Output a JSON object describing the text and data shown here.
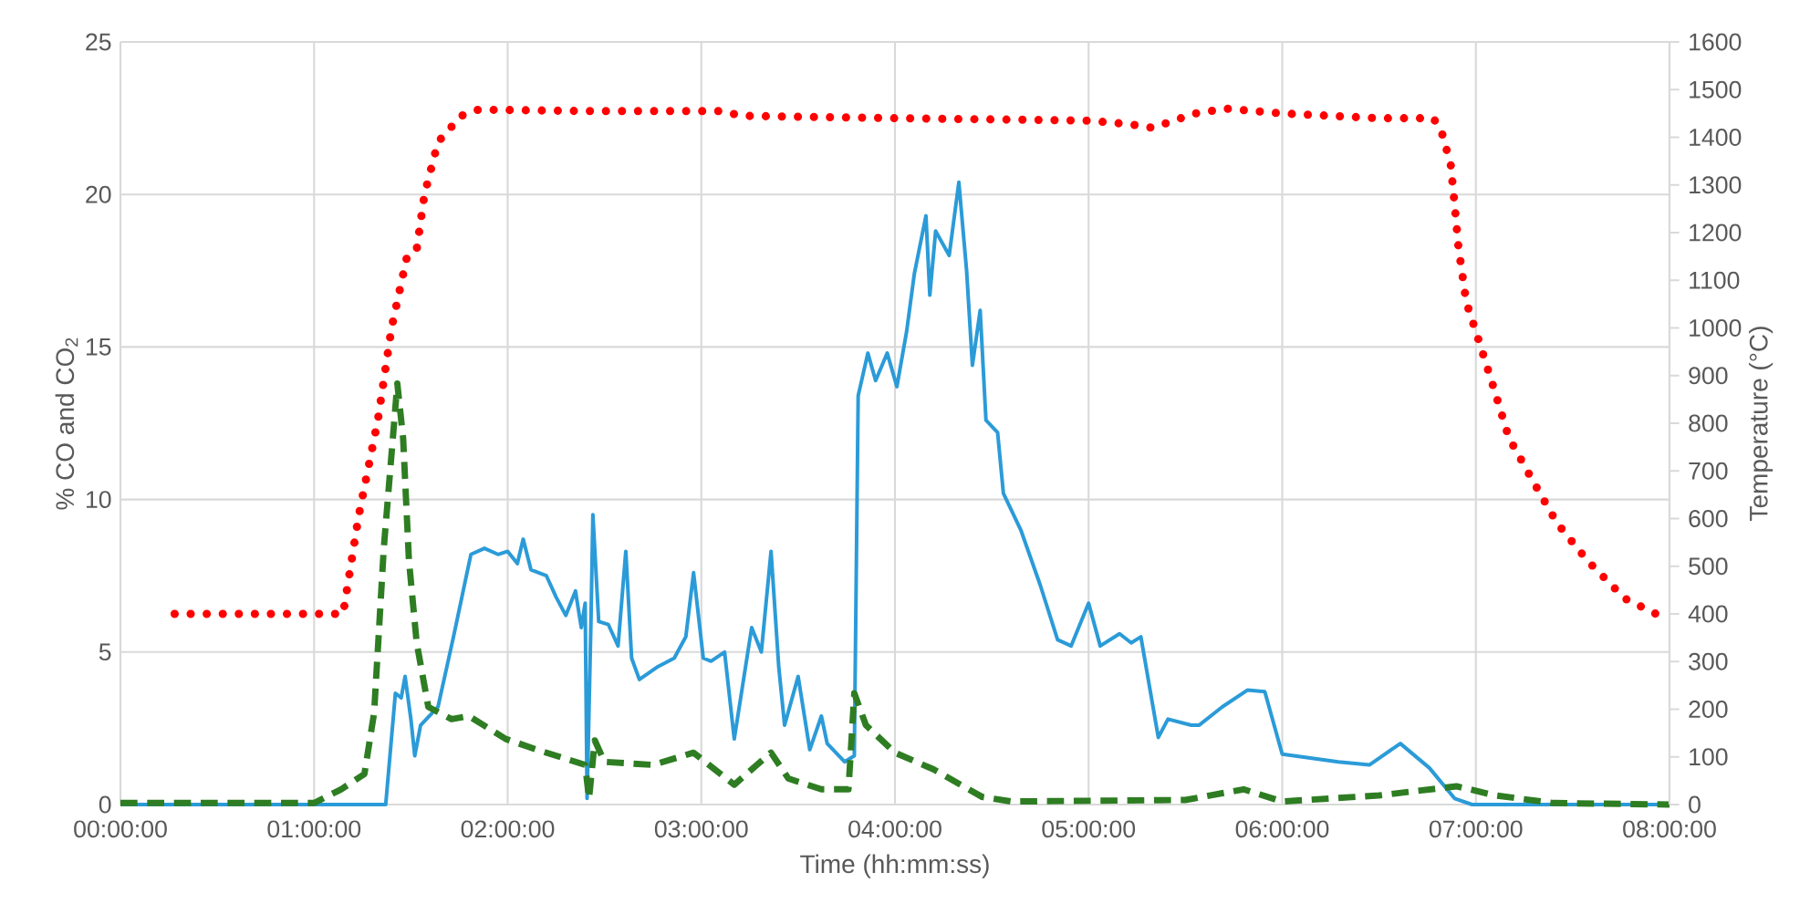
{
  "chart_data": {
    "type": "line",
    "xlabel": "Time (hh:mm:ss)",
    "ylabel": "% CO and CO$_{2}$",
    "y2label": "Temperature (°C)",
    "xlim": [
      0,
      8
    ],
    "xticks": [
      {
        "value": 0,
        "label": "00:00:00"
      },
      {
        "value": 1,
        "label": "01:00:00"
      },
      {
        "value": 2,
        "label": "02:00:00"
      },
      {
        "value": 3,
        "label": "03:00:00"
      },
      {
        "value": 4,
        "label": "04:00:00"
      },
      {
        "value": 5,
        "label": "05:00:00"
      },
      {
        "value": 6,
        "label": "06:00:00"
      },
      {
        "value": 7,
        "label": "07:00:00"
      },
      {
        "value": 8,
        "label": "08:00:00"
      }
    ],
    "ylim": [
      0,
      25
    ],
    "yticks": [
      0,
      5,
      10,
      15,
      20,
      25
    ],
    "y2lim": [
      0,
      1600
    ],
    "y2ticks": [
      0,
      100,
      200,
      300,
      400,
      500,
      600,
      700,
      800,
      900,
      1000,
      1100,
      1200,
      1300,
      1400,
      1500,
      1600
    ],
    "grid": true,
    "series": [
      {
        "color": "#2b9bd8",
        "line_style": "solid",
        "x": [
          0,
          1.37,
          1.42,
          1.45,
          1.47,
          1.5,
          1.52,
          1.55,
          1.64,
          1.72,
          1.81,
          1.88,
          1.95,
          2.0,
          2.05,
          2.08,
          2.12,
          2.2,
          2.25,
          2.3,
          2.35,
          2.38,
          2.4,
          2.41,
          2.43,
          2.44,
          2.47,
          2.52,
          2.57,
          2.61,
          2.64,
          2.68,
          2.77,
          2.86,
          2.92,
          2.96,
          3.01,
          3.05,
          3.12,
          3.17,
          3.26,
          3.31,
          3.36,
          3.4,
          3.43,
          3.5,
          3.56,
          3.62,
          3.65,
          3.74,
          3.79,
          3.81,
          3.86,
          3.9,
          3.96,
          4.01,
          4.06,
          4.1,
          4.16,
          4.18,
          4.21,
          4.28,
          4.33,
          4.37,
          4.4,
          4.44,
          4.47,
          4.53,
          4.56,
          4.65,
          4.75,
          4.84,
          4.91,
          5.0,
          5.06,
          5.16,
          5.22,
          5.27,
          5.36,
          5.41,
          5.53,
          5.57,
          5.69,
          5.82,
          5.91,
          6.0,
          6.29,
          6.45,
          6.61,
          6.76,
          6.89,
          6.98,
          8.0
        ],
        "values": [
          0,
          0,
          3.65,
          3.5,
          4.2,
          2.8,
          1.6,
          2.6,
          3.2,
          5.5,
          8.2,
          8.4,
          8.2,
          8.3,
          7.9,
          8.7,
          7.7,
          7.5,
          6.8,
          6.2,
          7.0,
          5.8,
          6.6,
          0.2,
          6.0,
          9.5,
          6.0,
          5.9,
          5.2,
          8.3,
          4.8,
          4.1,
          4.5,
          4.8,
          5.5,
          7.6,
          4.8,
          4.7,
          5.0,
          2.15,
          5.8,
          5.0,
          8.3,
          4.5,
          2.6,
          4.2,
          1.8,
          2.9,
          2.0,
          1.4,
          1.6,
          13.4,
          14.8,
          13.9,
          14.8,
          13.7,
          15.5,
          17.4,
          19.3,
          16.7,
          18.8,
          18.0,
          20.4,
          17.5,
          14.4,
          16.2,
          12.6,
          12.2,
          10.2,
          9.0,
          7.2,
          5.4,
          5.2,
          6.6,
          5.2,
          5.6,
          5.3,
          5.5,
          2.2,
          2.8,
          2.6,
          2.6,
          3.2,
          3.75,
          3.7,
          1.65,
          1.4,
          1.3,
          2.0,
          1.2,
          0.2,
          0,
          0
        ]
      },
      {
        "color": "#2e7d22",
        "line_style": "dashed",
        "x": [
          0,
          1.0,
          1.14,
          1.26,
          1.31,
          1.36,
          1.43,
          1.46,
          1.49,
          1.53,
          1.59,
          1.71,
          1.8,
          1.99,
          2.15,
          2.3,
          2.4,
          2.42,
          2.45,
          2.5,
          2.75,
          2.96,
          3.17,
          3.36,
          3.45,
          3.62,
          3.76,
          3.79,
          3.85,
          4.0,
          4.2,
          4.45,
          4.6,
          5.5,
          5.8,
          6.0,
          6.5,
          6.9,
          7.1,
          7.4,
          8.0
        ],
        "values": [
          0.05,
          0.05,
          0.5,
          1.0,
          3.0,
          8.4,
          13.8,
          12.0,
          8.0,
          5.3,
          3.2,
          2.8,
          2.9,
          2.15,
          1.8,
          1.5,
          1.3,
          0.2,
          2.1,
          1.4,
          1.3,
          1.7,
          0.65,
          1.7,
          0.85,
          0.5,
          0.5,
          3.65,
          2.6,
          1.7,
          1.15,
          0.25,
          0.1,
          0.15,
          0.5,
          0.1,
          0.3,
          0.6,
          0.3,
          0.05,
          0
        ]
      },
      {
        "color": "#ff0000",
        "line_style": "dotted",
        "axis": "y2",
        "x": [
          0.28,
          1.15,
          1.23,
          1.33,
          1.4,
          1.48,
          1.53,
          1.57,
          1.64,
          1.76,
          1.85,
          2.4,
          3.1,
          3.21,
          4.0,
          5.0,
          5.22,
          5.33,
          5.55,
          5.71,
          6.0,
          6.5,
          6.78,
          6.82,
          6.87,
          6.89,
          6.91,
          6.95,
          7.01,
          7.09,
          7.17,
          7.3,
          7.42,
          7.58,
          7.77,
          7.93
        ],
        "values": [
          400,
          400,
          605,
          808,
          1000,
          1150,
          1165,
          1280,
          1390,
          1445,
          1458,
          1455,
          1455,
          1445,
          1440,
          1435,
          1427,
          1420,
          1450,
          1460,
          1450,
          1440,
          1440,
          1416,
          1343,
          1260,
          1170,
          1055,
          980,
          877,
          770,
          675,
          590,
          510,
          432,
          400
        ]
      }
    ]
  }
}
